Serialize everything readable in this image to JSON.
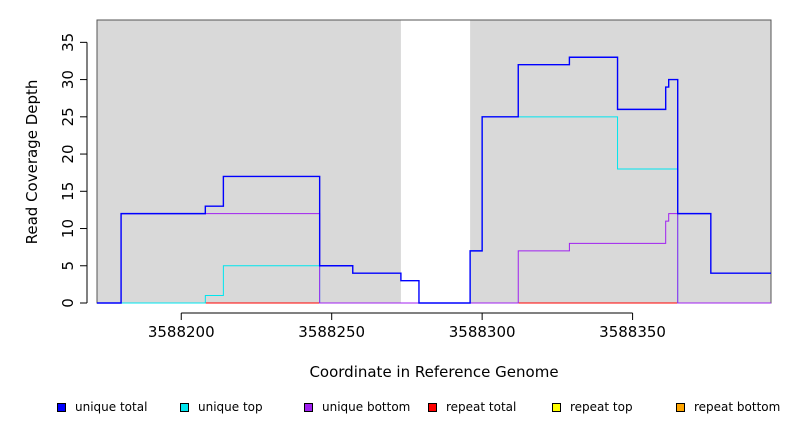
{
  "chart_data": {
    "type": "line",
    "title": "",
    "xlabel": "Coordinate in Reference Genome",
    "ylabel": "Read Coverage Depth",
    "xlim": [
      3588172,
      3588396
    ],
    "ylim": [
      0,
      38
    ],
    "x_ticks": [
      3588200,
      3588250,
      3588300,
      3588350
    ],
    "y_ticks": [
      0,
      5,
      10,
      15,
      20,
      25,
      30,
      35
    ],
    "grid": false,
    "legend_position": "bottom",
    "shaded_regions": [
      {
        "x": [
          3588172,
          3588273
        ],
        "color": "#d9d9d9"
      },
      {
        "x": [
          3588296,
          3588396
        ],
        "color": "#d9d9d9"
      }
    ],
    "series": [
      {
        "name": "unique total",
        "color": "#0000ff",
        "x": [
          3588172,
          3588180,
          3588180,
          3588208,
          3588208,
          3588214,
          3588214,
          3588246,
          3588246,
          3588257,
          3588257,
          3588273,
          3588273,
          3588279,
          3588279,
          3588296,
          3588296,
          3588300,
          3588300,
          3588312,
          3588312,
          3588329,
          3588329,
          3588345,
          3588345,
          3588361,
          3588361,
          3588362,
          3588362,
          3588365,
          3588365,
          3588376,
          3588376,
          3588396
        ],
        "y": [
          0,
          0,
          12,
          12,
          13,
          13,
          17,
          17,
          5,
          5,
          4,
          4,
          3,
          3,
          0,
          0,
          7,
          7,
          25,
          25,
          32,
          32,
          33,
          33,
          26,
          26,
          29,
          29,
          30,
          30,
          12,
          12,
          4,
          4
        ]
      },
      {
        "name": "unique top",
        "color": "#00e5ee",
        "x": [
          3588172,
          3588208,
          3588208,
          3588214,
          3588214,
          3588246,
          3588246,
          3588296,
          3588296,
          3588300,
          3588300,
          3588345,
          3588345,
          3588365,
          3588365,
          3588396
        ],
        "y": [
          0,
          0,
          1,
          1,
          5,
          5,
          0,
          0,
          7,
          7,
          25,
          25,
          18,
          18,
          0,
          0
        ]
      },
      {
        "name": "unique bottom",
        "color": "#a020f0",
        "x": [
          3588172,
          3588180,
          3588180,
          3588246,
          3588246,
          3588312,
          3588312,
          3588329,
          3588329,
          3588361,
          3588361,
          3588362,
          3588362,
          3588365,
          3588365,
          3588396
        ],
        "y": [
          0,
          0,
          12,
          12,
          0,
          0,
          7,
          7,
          8,
          8,
          11,
          11,
          12,
          12,
          0,
          0
        ]
      },
      {
        "name": "repeat total",
        "color": "#ff0000",
        "x": [
          3588172,
          3588396
        ],
        "y": [
          0,
          0
        ]
      },
      {
        "name": "repeat top",
        "color": "#ffff00",
        "x": [
          3588172,
          3588396
        ],
        "y": [
          0,
          0
        ]
      },
      {
        "name": "repeat bottom",
        "color": "#ffa500",
        "x": [
          3588172,
          3588396
        ],
        "y": [
          0,
          0
        ]
      }
    ]
  }
}
